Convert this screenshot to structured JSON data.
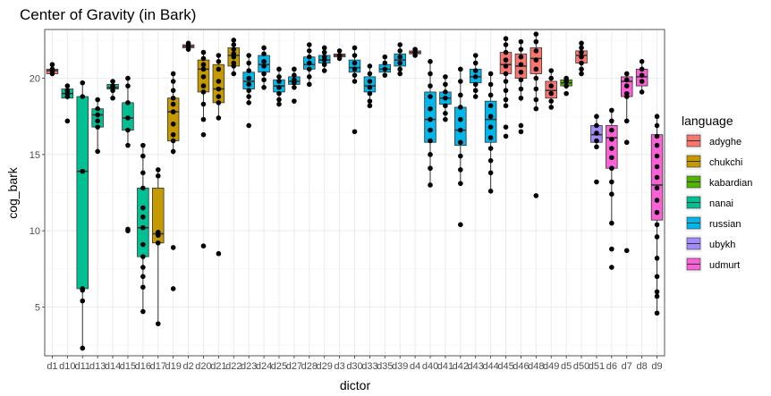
{
  "chart_data": {
    "type": "box",
    "title": "Center of Gravity  (in Bark)",
    "xlabel": "dictor",
    "ylabel": "cog_bark",
    "ylim": [
      1.8,
      23.2
    ],
    "yticks": [
      5,
      10,
      15,
      20
    ],
    "grid": true,
    "legend": {
      "title": "language",
      "position": "right",
      "entries": [
        {
          "name": "adyghe",
          "color": "#F8766D"
        },
        {
          "name": "chukchi",
          "color": "#C49A00"
        },
        {
          "name": "kabardian",
          "color": "#53B400"
        },
        {
          "name": "nanai",
          "color": "#00C094"
        },
        {
          "name": "russian",
          "color": "#00B6EB"
        },
        {
          "name": "ubykh",
          "color": "#A58AFF"
        },
        {
          "name": "udmurt",
          "color": "#FB61D7"
        }
      ]
    },
    "boxes": [
      {
        "category": "d1",
        "language": "adyghe",
        "q1": 20.3,
        "median": 20.5,
        "q3": 20.6,
        "lower": 20.2,
        "upper": 20.9,
        "points": [
          20.9,
          20.6,
          20.5,
          20.3
        ]
      },
      {
        "category": "d10",
        "language": "nanai",
        "q1": 18.7,
        "median": 19.0,
        "q3": 19.3,
        "lower": 18.6,
        "upper": 19.5,
        "points": [
          19.5,
          19.2,
          19.0,
          18.8,
          17.2
        ]
      },
      {
        "category": "d11",
        "language": "nanai",
        "q1": 6.2,
        "median": 13.9,
        "q3": 18.8,
        "lower": 2.3,
        "upper": 19.7,
        "points": [
          19.7,
          18.8,
          13.9,
          6.2,
          6.1,
          5.4,
          2.3
        ]
      },
      {
        "category": "d13",
        "language": "nanai",
        "q1": 16.8,
        "median": 17.6,
        "q3": 18.0,
        "lower": 15.2,
        "upper": 18.6,
        "points": [
          18.6,
          18.0,
          17.6,
          17.2,
          16.8,
          15.2
        ]
      },
      {
        "category": "d14",
        "language": "nanai",
        "q1": 19.3,
        "median": 19.4,
        "q3": 19.6,
        "lower": 18.7,
        "upper": 19.8,
        "points": [
          19.8,
          19.5,
          19.4,
          19.2,
          18.7
        ]
      },
      {
        "category": "d15",
        "language": "nanai",
        "q1": 16.6,
        "median": 17.4,
        "q3": 18.4,
        "lower": 15.6,
        "upper": 20.0,
        "points": [
          20.0,
          19.5,
          18.4,
          17.4,
          16.6,
          15.6,
          10.1,
          10.0
        ]
      },
      {
        "category": "d16",
        "language": "nanai",
        "q1": 8.3,
        "median": 10.2,
        "q3": 12.8,
        "lower": 4.7,
        "upper": 15.6,
        "points": [
          15.6,
          14.9,
          13.8,
          12.8,
          11.5,
          10.9,
          10.2,
          9.1,
          8.3,
          7.6,
          7.0,
          6.3,
          4.7
        ]
      },
      {
        "category": "d17",
        "language": "chukchi",
        "q1": 9.2,
        "median": 9.8,
        "q3": 12.8,
        "lower": 3.9,
        "upper": 14.0,
        "points": [
          14.0,
          13.6,
          9.9,
          9.7,
          9.2,
          3.9
        ]
      },
      {
        "category": "d19",
        "language": "chukchi",
        "q1": 15.9,
        "median": 17.8,
        "q3": 18.7,
        "lower": 15.0,
        "upper": 20.3,
        "points": [
          20.3,
          19.8,
          19.2,
          18.7,
          18.3,
          17.8,
          17.0,
          16.3,
          15.9,
          15.2,
          8.9,
          6.2
        ]
      },
      {
        "category": "d2",
        "language": "adyghe",
        "q1": 22.0,
        "median": 22.1,
        "q3": 22.2,
        "lower": 21.8,
        "upper": 22.3,
        "points": [
          22.3,
          22.1,
          21.9
        ]
      },
      {
        "category": "d20",
        "language": "chukchi",
        "q1": 19.1,
        "median": 20.6,
        "q3": 21.2,
        "lower": 17.3,
        "upper": 21.7,
        "points": [
          21.7,
          21.3,
          20.9,
          20.6,
          20.1,
          19.5,
          19.1,
          18.3,
          17.3,
          16.3,
          9.0
        ]
      },
      {
        "category": "d21",
        "language": "chukchi",
        "q1": 18.4,
        "median": 19.3,
        "q3": 20.9,
        "lower": 17.4,
        "upper": 21.5,
        "points": [
          21.5,
          21.1,
          20.6,
          19.8,
          19.3,
          18.8,
          18.4,
          17.4,
          8.5
        ]
      },
      {
        "category": "d22",
        "language": "chukchi",
        "q1": 20.8,
        "median": 21.5,
        "q3": 22.0,
        "lower": 20.3,
        "upper": 22.5,
        "points": [
          22.5,
          22.2,
          21.9,
          21.6,
          21.4,
          21.0,
          20.8,
          20.3
        ]
      },
      {
        "category": "d23",
        "language": "russian",
        "q1": 19.3,
        "median": 19.8,
        "q3": 20.4,
        "lower": 18.3,
        "upper": 21.5,
        "points": [
          21.5,
          21.0,
          20.5,
          20.0,
          19.6,
          19.2,
          18.8,
          18.4,
          16.9
        ]
      },
      {
        "category": "d24",
        "language": "russian",
        "q1": 20.4,
        "median": 20.9,
        "q3": 21.5,
        "lower": 19.4,
        "upper": 22.0,
        "points": [
          22.0,
          21.6,
          21.1,
          20.8,
          20.3,
          19.9,
          19.4
        ]
      },
      {
        "category": "d25",
        "language": "russian",
        "q1": 19.1,
        "median": 19.5,
        "q3": 19.9,
        "lower": 18.3,
        "upper": 20.6,
        "points": [
          20.6,
          20.1,
          19.8,
          19.4,
          19.0,
          18.6,
          18.3
        ]
      },
      {
        "category": "d27",
        "language": "russian",
        "q1": 19.6,
        "median": 19.8,
        "q3": 20.1,
        "lower": 19.3,
        "upper": 20.6,
        "points": [
          20.6,
          20.2,
          19.9,
          19.7,
          19.4,
          18.5
        ]
      },
      {
        "category": "d28",
        "language": "russian",
        "q1": 20.6,
        "median": 20.9,
        "q3": 21.4,
        "lower": 19.5,
        "upper": 22.2,
        "points": [
          22.2,
          21.8,
          21.4,
          21.0,
          20.6,
          20.1,
          19.6
        ]
      },
      {
        "category": "d29",
        "language": "russian",
        "q1": 21.0,
        "median": 21.2,
        "q3": 21.5,
        "lower": 20.4,
        "upper": 22.0,
        "points": [
          22.0,
          21.7,
          21.4,
          21.2,
          20.9,
          20.5
        ]
      },
      {
        "category": "d3",
        "language": "adyghe",
        "q1": 21.4,
        "median": 21.5,
        "q3": 21.6,
        "lower": 21.2,
        "upper": 21.8,
        "points": [
          21.8,
          21.5,
          21.3
        ]
      },
      {
        "category": "d30",
        "language": "russian",
        "q1": 20.4,
        "median": 20.7,
        "q3": 21.2,
        "lower": 19.7,
        "upper": 22.0,
        "points": [
          22.0,
          21.5,
          21.0,
          20.6,
          20.2,
          19.8,
          16.5
        ]
      },
      {
        "category": "d33",
        "language": "russian",
        "q1": 19.1,
        "median": 19.5,
        "q3": 20.1,
        "lower": 18.2,
        "upper": 20.8,
        "points": [
          20.8,
          20.3,
          19.8,
          19.4,
          19.0,
          18.5,
          18.2
        ]
      },
      {
        "category": "d35",
        "language": "russian",
        "q1": 20.4,
        "median": 20.6,
        "q3": 20.9,
        "lower": 20.1,
        "upper": 21.4,
        "points": [
          21.4,
          21.0,
          20.6,
          20.2
        ]
      },
      {
        "category": "d39",
        "language": "russian",
        "q1": 20.8,
        "median": 21.2,
        "q3": 21.6,
        "lower": 20.3,
        "upper": 22.2,
        "points": [
          22.2,
          21.8,
          21.4,
          21.0,
          20.6,
          20.3
        ]
      },
      {
        "category": "d4",
        "language": "adyghe",
        "q1": 21.6,
        "median": 21.7,
        "q3": 21.8,
        "lower": 21.5,
        "upper": 21.9,
        "points": [
          21.9,
          21.7,
          21.5
        ]
      },
      {
        "category": "d40",
        "language": "russian",
        "q1": 15.8,
        "median": 17.3,
        "q3": 19.1,
        "lower": 13.0,
        "upper": 21.1,
        "points": [
          21.1,
          20.3,
          19.5,
          18.8,
          18.0,
          17.3,
          16.6,
          15.9,
          15.0,
          14.1,
          13.0
        ]
      },
      {
        "category": "d41",
        "language": "russian",
        "q1": 18.3,
        "median": 18.7,
        "q3": 19.1,
        "lower": 17.3,
        "upper": 20.1,
        "points": [
          20.1,
          19.6,
          19.1,
          18.7,
          18.2,
          17.7,
          17.3
        ]
      },
      {
        "category": "d42",
        "language": "russian",
        "q1": 15.6,
        "median": 16.6,
        "q3": 18.1,
        "lower": 13.1,
        "upper": 20.6,
        "points": [
          20.6,
          19.8,
          18.9,
          18.1,
          17.3,
          16.6,
          15.8,
          14.9,
          14.0,
          13.1,
          10.4
        ]
      },
      {
        "category": "d43",
        "language": "russian",
        "q1": 19.7,
        "median": 20.1,
        "q3": 20.6,
        "lower": 18.8,
        "upper": 21.5,
        "points": [
          21.5,
          21.0,
          20.5,
          20.1,
          19.6,
          19.2,
          18.8
        ]
      },
      {
        "category": "d44",
        "language": "russian",
        "q1": 15.8,
        "median": 17.3,
        "q3": 18.5,
        "lower": 12.6,
        "upper": 20.3,
        "points": [
          20.3,
          19.6,
          18.9,
          18.2,
          17.5,
          16.8,
          16.1,
          15.4,
          14.6,
          13.8,
          12.6
        ]
      },
      {
        "category": "d45",
        "language": "adyghe",
        "q1": 20.3,
        "median": 20.9,
        "q3": 21.7,
        "lower": 18.2,
        "upper": 22.6,
        "points": [
          22.6,
          22.2,
          21.7,
          21.2,
          20.8,
          20.3,
          19.8,
          19.2,
          18.6,
          18.2,
          16.8,
          16.2
        ]
      },
      {
        "category": "d46",
        "language": "adyghe",
        "q1": 20.0,
        "median": 20.8,
        "q3": 21.6,
        "lower": 18.5,
        "upper": 22.4,
        "points": [
          22.4,
          21.9,
          21.4,
          20.9,
          20.4,
          19.9,
          19.3,
          18.7,
          16.9,
          16.5
        ]
      },
      {
        "category": "d48",
        "language": "adyghe",
        "q1": 20.3,
        "median": 21.3,
        "q3": 22.0,
        "lower": 18.0,
        "upper": 22.9,
        "points": [
          22.9,
          22.4,
          21.8,
          21.2,
          20.6,
          20.0,
          19.3,
          18.6,
          18.0,
          12.3
        ]
      },
      {
        "category": "d49",
        "language": "adyghe",
        "q1": 18.7,
        "median": 19.2,
        "q3": 19.8,
        "lower": 18.1,
        "upper": 20.5,
        "points": [
          20.5,
          20.0,
          19.5,
          19.0,
          18.5,
          18.1
        ]
      },
      {
        "category": "d5",
        "language": "kabardian",
        "q1": 19.5,
        "median": 19.7,
        "q3": 19.9,
        "lower": 19.3,
        "upper": 20.0,
        "points": [
          20.0,
          19.8,
          19.5,
          19.0
        ]
      },
      {
        "category": "d50",
        "language": "adyghe",
        "q1": 21.0,
        "median": 21.5,
        "q3": 21.8,
        "lower": 20.3,
        "upper": 22.3,
        "points": [
          22.3,
          22.0,
          21.7,
          21.4,
          21.0,
          20.6,
          20.3
        ]
      },
      {
        "category": "d51",
        "language": "ubykh",
        "q1": 15.8,
        "median": 16.3,
        "q3": 16.9,
        "lower": 15.5,
        "upper": 17.5,
        "points": [
          17.5,
          16.9,
          16.4,
          15.9,
          15.5,
          13.2
        ]
      },
      {
        "category": "d6",
        "language": "udmurt",
        "q1": 14.1,
        "median": 16.1,
        "q3": 16.9,
        "lower": 10.5,
        "upper": 17.9,
        "points": [
          17.9,
          17.2,
          16.6,
          16.0,
          15.4,
          14.8,
          14.1,
          13.2,
          12.4,
          10.5,
          8.8,
          7.6
        ]
      },
      {
        "category": "d7",
        "language": "udmurt",
        "q1": 18.8,
        "median": 19.8,
        "q3": 20.1,
        "lower": 17.2,
        "upper": 20.3,
        "points": [
          20.3,
          19.9,
          19.5,
          19.0,
          18.8,
          17.2,
          15.8,
          8.7
        ]
      },
      {
        "category": "d8",
        "language": "udmurt",
        "q1": 19.5,
        "median": 20.1,
        "q3": 20.6,
        "lower": 19.1,
        "upper": 21.1,
        "points": [
          21.1,
          20.6,
          20.2,
          19.8,
          19.1
        ]
      },
      {
        "category": "d9",
        "language": "udmurt",
        "q1": 10.7,
        "median": 13.0,
        "q3": 16.3,
        "lower": 4.6,
        "upper": 17.5,
        "points": [
          17.5,
          16.9,
          16.2,
          15.6,
          14.9,
          14.2,
          13.5,
          12.8,
          12.0,
          11.2,
          10.4,
          9.6,
          8.2,
          7.0,
          6.0,
          5.7,
          4.6
        ]
      }
    ]
  }
}
